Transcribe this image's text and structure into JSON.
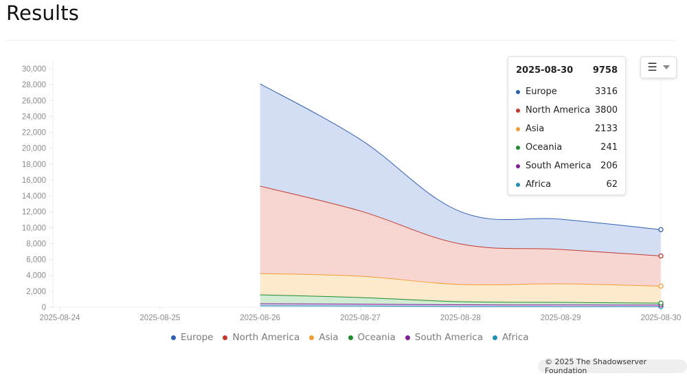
{
  "page": {
    "title": "Results",
    "footer": "© 2025 The Shadowserver Foundation"
  },
  "menu": {
    "hamburger_icon": "☰",
    "caret_icon": "▾"
  },
  "tooltip": {
    "date": "2025-08-30",
    "total": "9758",
    "rows": [
      {
        "name": "Europe",
        "value": "3316",
        "color": "#2f5fb3"
      },
      {
        "name": "North America",
        "value": "3800",
        "color": "#c0392b"
      },
      {
        "name": "Asia",
        "value": "2133",
        "color": "#f39c33"
      },
      {
        "name": "Oceania",
        "value": "241",
        "color": "#1e8a2e"
      },
      {
        "name": "South America",
        "value": "206",
        "color": "#7d1e96"
      },
      {
        "name": "Africa",
        "value": "62",
        "color": "#1f8fb5"
      }
    ]
  },
  "legend": [
    {
      "name": "Europe",
      "color": "#2f5fb3"
    },
    {
      "name": "North America",
      "color": "#c0392b"
    },
    {
      "name": "Asia",
      "color": "#f39c33"
    },
    {
      "name": "Oceania",
      "color": "#1e8a2e"
    },
    {
      "name": "South America",
      "color": "#7d1e96"
    },
    {
      "name": "Africa",
      "color": "#1f8fb5"
    }
  ],
  "chart_data": {
    "type": "area",
    "stacked": true,
    "title": "",
    "xlabel": "",
    "ylabel": "",
    "ylim": [
      0,
      30000
    ],
    "y_ticks": [
      "0",
      "2,000",
      "4,000",
      "6,000",
      "8,000",
      "10,000",
      "12,000",
      "14,000",
      "16,000",
      "18,000",
      "20,000",
      "22,000",
      "24,000",
      "26,000",
      "28,000",
      "30,000"
    ],
    "x_ticks": [
      "2025-08-24",
      "2025-08-25",
      "2025-08-26",
      "2025-08-27",
      "2025-08-28",
      "2025-08-29",
      "2025-08-30"
    ],
    "categories": [
      "2025-08-26",
      "2025-08-27",
      "2025-08-28",
      "2025-08-29",
      "2025-08-30"
    ],
    "series": [
      {
        "name": "Europe",
        "color": "#2f5fb3",
        "fill": "#d3def4",
        "values": [
          12880,
          9000,
          4070,
          3810,
          3316
        ]
      },
      {
        "name": "North America",
        "color": "#c0392b",
        "fill": "#f7d6d2",
        "values": [
          10990,
          8210,
          5100,
          4320,
          3800
        ]
      },
      {
        "name": "Asia",
        "color": "#f39c33",
        "fill": "#fde9cc",
        "values": [
          2680,
          2680,
          2160,
          2340,
          2133
        ]
      },
      {
        "name": "Oceania",
        "color": "#1e8a2e",
        "fill": "#d2ecd4",
        "values": [
          1120,
          830,
          390,
          320,
          241
        ]
      },
      {
        "name": "South America",
        "color": "#7d1e96",
        "fill": "#e4d2ec",
        "values": [
          250,
          230,
          220,
          210,
          206
        ]
      },
      {
        "name": "Africa",
        "color": "#1f8fb5",
        "fill": "#d0e6f1",
        "values": [
          180,
          150,
          80,
          70,
          62
        ]
      }
    ],
    "stack_order_bottom_to_top": [
      "Africa",
      "South America",
      "Oceania",
      "Asia",
      "North America",
      "Europe"
    ],
    "tooltip_date": "2025-08-30",
    "tooltip_total": 9758,
    "legend_position": "bottom",
    "grid": false
  }
}
